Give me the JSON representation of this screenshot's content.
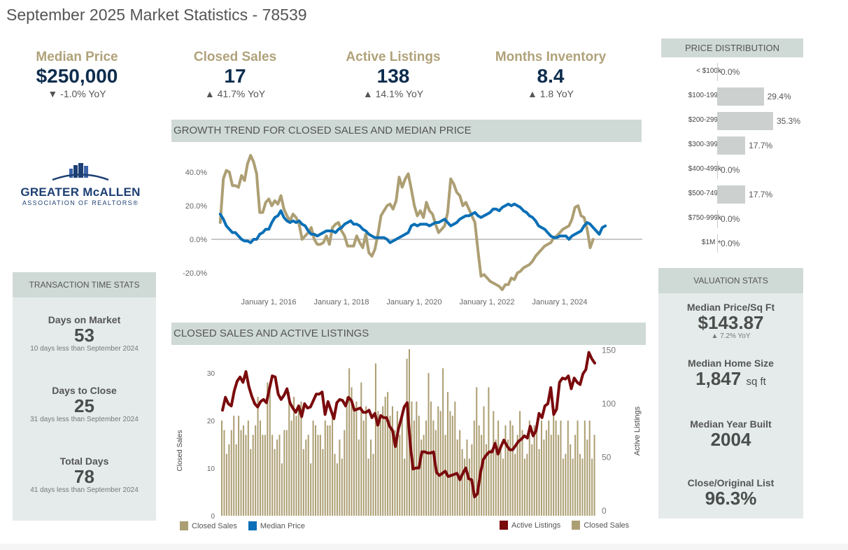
{
  "page": {
    "title": "September 2025 Market Statistics - 78539"
  },
  "kpis": [
    {
      "label": "Median Price",
      "value": "$250,000",
      "yoy": "▼ -1.0% YoY"
    },
    {
      "label": "Closed Sales",
      "value": "17",
      "yoy": "▲ 41.7% YoY"
    },
    {
      "label": "Active Listings",
      "value": "138",
      "yoy": "▲ 14.1% YoY"
    },
    {
      "label": "Months Inventory",
      "value": "8.4",
      "yoy": "▲ 1.8 YoY"
    }
  ],
  "logo": {
    "line1": "GREATER McALLEN",
    "line2": "ASSOCIATION OF REALTORS®"
  },
  "transaction_stats": {
    "header": "TRANSACTION TIME STATS",
    "items": [
      {
        "label": "Days on Market",
        "value": "53",
        "sub": "10 days less than September 2024"
      },
      {
        "label": "Days to Close",
        "value": "25",
        "sub": "31 days less than September 2024"
      },
      {
        "label": "Total Days",
        "value": "78",
        "sub": "41 days less than September 2024"
      }
    ]
  },
  "valuation_stats": {
    "header": "VALUATION STATS",
    "items": [
      {
        "label": "Median Price/Sq Ft",
        "value": "$143.87",
        "unit": "",
        "sub": "▲ 7.2% YoY"
      },
      {
        "label": "Median Home Size",
        "value": "1,847",
        "unit": "sq ft",
        "sub": ""
      },
      {
        "label": "Median Year Built",
        "value": "2004",
        "unit": "",
        "sub": ""
      },
      {
        "label": "Close/Original List",
        "value": "96.3%",
        "unit": "",
        "sub": ""
      }
    ]
  },
  "colors": {
    "gold": "#ad9f74",
    "blue": "#0a6fb6",
    "maroon": "#7a0a0c",
    "navy": "#0e2d4e"
  },
  "chart_data": [
    {
      "id": "price-distribution",
      "type": "bar",
      "orientation": "horizontal",
      "title": "PRICE DISTRIBUTION",
      "categories": [
        "< $100k",
        "$100-199k",
        "$200-299k",
        "$300-399k",
        "$400-499k",
        "$500-749k",
        "$750-999k",
        "$1M +"
      ],
      "values": [
        0.0,
        29.4,
        35.3,
        17.7,
        0.0,
        17.7,
        0.0,
        0.0
      ],
      "labels": [
        "0.0%",
        "29.4%",
        "35.3%",
        "17.7%",
        "0.0%",
        "17.7%",
        "0.0%",
        "0.0%"
      ],
      "xlim": [
        0,
        40
      ]
    },
    {
      "id": "growth-trend",
      "type": "line",
      "title": "GROWTH TREND FOR CLOSED SALES AND MEDIAN PRICE",
      "xlabel": "",
      "ylabel": "",
      "ylim": [
        -30,
        55
      ],
      "y_ticks": [
        40,
        20,
        0,
        -20
      ],
      "y_tick_labels": [
        "40.0%",
        "20.0%",
        "0.0%",
        "-20.0%"
      ],
      "x_ticks": [
        2016,
        2018,
        2020,
        2022,
        2024
      ],
      "x_tick_labels": [
        "January 1, 2016",
        "January 1, 2018",
        "January 1, 2020",
        "January 1, 2022",
        "January 1, 2024"
      ],
      "x_range": [
        2014.45,
        2025.67
      ],
      "grid": false,
      "zero_line": true,
      "legend": {
        "position": "bottom-left",
        "entries": [
          "Closed Sales",
          "Median Price"
        ]
      },
      "series": [
        {
          "name": "Closed Sales",
          "color": "#ad9f74",
          "start": 2014.67,
          "step_months": 1,
          "values": [
            10,
            36,
            41,
            40,
            32,
            32,
            31,
            38,
            35,
            45,
            50,
            46,
            39,
            16,
            16,
            22,
            24,
            20,
            23,
            21,
            26,
            18,
            14,
            11,
            15,
            13,
            9,
            0,
            2,
            4,
            7,
            0,
            -3,
            -3,
            -2,
            2,
            -3,
            7,
            9,
            10,
            5,
            2,
            -4,
            -4,
            -4,
            2,
            -2,
            -5,
            3,
            -8,
            -10,
            -6,
            3,
            14,
            17,
            20,
            21,
            18,
            23,
            37,
            31,
            36,
            39,
            30,
            20,
            14,
            17,
            13,
            22,
            17,
            15,
            9,
            4,
            6,
            8,
            16,
            36,
            33,
            28,
            26,
            20,
            22,
            18,
            14,
            10,
            -7,
            -22,
            -21,
            -23,
            -25,
            -26,
            -27,
            -28,
            -30,
            -27,
            -27,
            -23,
            -24,
            -20,
            -19,
            -17,
            -16,
            -15,
            -13,
            -10,
            -8,
            -6,
            -4,
            -3,
            -2,
            1,
            2,
            4,
            6,
            7,
            8,
            12,
            19,
            20,
            14,
            13,
            6,
            -5,
            0
          ]
        },
        {
          "name": "Median Price",
          "color": "#0a6fb6",
          "start": 2014.67,
          "step_months": 1,
          "values": [
            15,
            12,
            8,
            6,
            4,
            4,
            2,
            0,
            -1,
            -1,
            -2,
            0,
            0,
            3,
            4,
            6,
            6,
            10,
            13,
            14,
            17,
            13,
            11,
            10,
            11,
            10,
            11,
            9,
            8,
            5,
            3,
            3,
            2,
            3,
            4,
            5,
            5,
            5,
            4,
            6,
            7,
            9,
            10,
            11,
            9,
            9,
            8,
            6,
            5,
            3,
            2,
            1,
            1,
            1,
            1,
            0,
            -2,
            -1,
            0,
            1,
            2,
            3,
            4,
            8,
            9,
            8,
            9,
            9,
            9,
            8,
            9,
            10,
            10,
            11,
            12,
            10,
            8,
            9,
            10,
            12,
            13,
            14,
            14,
            15,
            16,
            14,
            13,
            14,
            15,
            16,
            18,
            18,
            17,
            19,
            20,
            21,
            20,
            21,
            20,
            19,
            17,
            16,
            14,
            13,
            11,
            8,
            7,
            6,
            4,
            2,
            1,
            1,
            2,
            2,
            2,
            0,
            2,
            3,
            4,
            5,
            8,
            10,
            9,
            7,
            5,
            3,
            7,
            8
          ]
        }
      ]
    },
    {
      "id": "closed-sales-active-listings",
      "type": "bar",
      "title": "CLOSED SALES AND ACTIVE LISTINGS",
      "ylabel": "Closed Sales",
      "ylabel_right": "Active Listings",
      "ylim": [
        0,
        35
      ],
      "ylim_right": [
        0,
        155
      ],
      "y_ticks": [
        0,
        10,
        20,
        30
      ],
      "y_ticks_right": [
        0,
        50,
        100,
        150
      ],
      "legend": {
        "position": "bottom-right",
        "entries": [
          "Active Listings",
          "Closed Sales"
        ]
      },
      "series": [
        {
          "name": "Closed Sales",
          "type": "bar",
          "axis": "left",
          "color": "#ad9f74",
          "values": [
            20,
            18,
            13,
            15,
            18,
            21,
            15,
            21,
            18,
            19,
            17,
            20,
            14,
            17,
            19,
            25,
            20,
            17,
            17,
            28,
            28,
            17,
            14,
            16,
            17,
            11,
            18,
            18,
            26,
            20,
            25,
            21,
            23,
            24,
            14,
            16,
            17,
            11,
            20,
            19,
            17,
            17,
            14,
            20,
            19,
            19,
            21,
            13,
            11,
            16,
            12,
            18,
            25,
            31,
            27,
            23,
            24,
            16,
            28,
            20,
            23,
            12,
            16,
            13,
            32,
            22,
            20,
            23,
            25,
            26,
            21,
            23,
            18,
            22,
            17,
            22,
            12,
            33,
            35,
            24,
            20,
            24,
            21,
            16,
            17,
            20,
            30,
            24,
            20,
            18,
            23,
            22,
            31,
            17,
            26,
            22,
            21,
            24,
            16,
            18,
            14,
            12,
            16,
            12,
            15,
            20,
            27,
            19,
            17,
            23,
            15,
            27,
            14,
            22,
            16,
            20,
            15,
            12,
            19,
            16,
            20,
            19,
            13,
            17,
            22,
            18,
            12,
            13,
            20,
            15,
            19,
            18,
            14,
            20,
            16,
            18,
            20,
            17,
            23,
            20,
            17,
            20,
            12,
            13,
            20,
            15,
            12,
            17,
            20,
            13,
            12,
            20,
            16,
            20,
            12,
            17
          ]
        },
        {
          "name": "Active Listings",
          "type": "line",
          "axis": "right",
          "color": "#7a0a0c",
          "values": [
            94,
            106,
            100,
            98,
            112,
            121,
            125,
            120,
            130,
            116,
            107,
            100,
            97,
            102,
            104,
            101,
            114,
            126,
            125,
            109,
            104,
            108,
            114,
            101,
            96,
            92,
            98,
            88,
            100,
            96,
            97,
            103,
            109,
            109,
            111,
            90,
            102,
            94,
            86,
            101,
            104,
            103,
            98,
            106,
            103,
            94,
            95,
            96,
            92,
            92,
            94,
            87,
            91,
            80,
            89,
            87,
            87,
            79,
            75,
            60,
            76,
            86,
            97,
            101,
            64,
            39,
            40,
            40,
            55,
            55,
            54,
            54,
            55,
            36,
            33,
            35,
            37,
            32,
            33,
            34,
            35,
            29,
            35,
            40,
            30,
            29,
            13,
            16,
            35,
            48,
            52,
            55,
            55,
            63,
            53,
            60,
            66,
            61,
            57,
            57,
            61,
            65,
            67,
            70,
            68,
            79,
            70,
            75,
            91,
            87,
            98,
            100,
            115,
            90,
            95,
            120,
            124,
            123,
            126,
            114,
            124,
            120,
            118,
            128,
            132,
            148,
            142,
            138
          ]
        }
      ]
    }
  ]
}
